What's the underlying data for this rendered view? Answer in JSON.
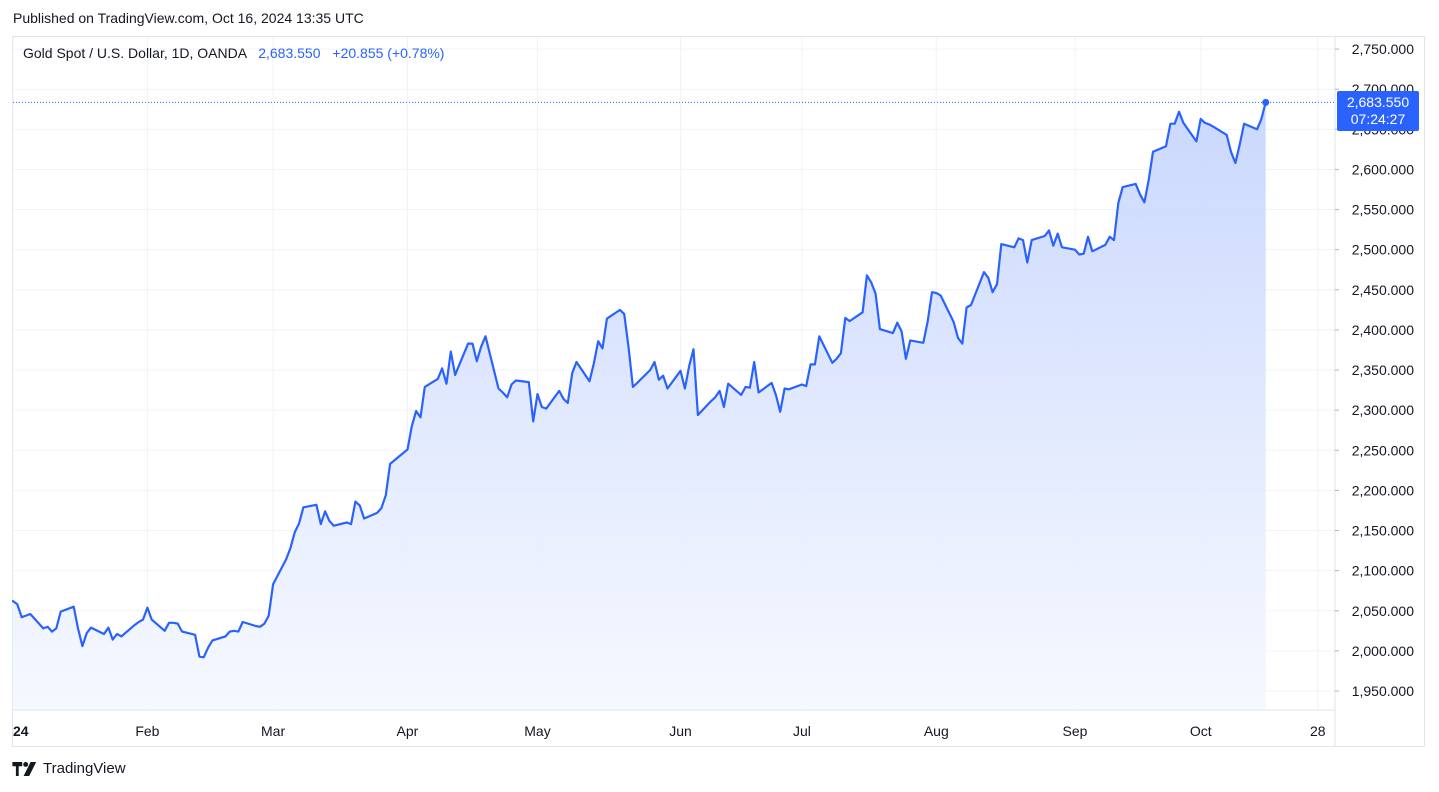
{
  "published": "Published on TradingView.com, Oct 16, 2024 13:35 UTC",
  "legend": {
    "symbol": "Gold Spot / U.S. Dollar, 1D, OANDA",
    "last": "2,683.550",
    "change": "+20.855 (+0.78%)"
  },
  "price_tag": {
    "price": "2,683.550",
    "countdown": "07:24:27"
  },
  "footer": {
    "brand": "TradingView"
  },
  "colors": {
    "line": "#2962ff",
    "fill_top": "#c7d6fd",
    "fill_bottom": "#f5f8ff",
    "grid": "#f0f3fa"
  },
  "chart_data": {
    "type": "area",
    "title": "Gold Spot / U.S. Dollar, 1D, OANDA",
    "xlabel": "",
    "ylabel": "",
    "ylim": [
      1930,
      2770
    ],
    "y_ticks": [
      1950,
      2000,
      2050,
      2100,
      2150,
      2200,
      2250,
      2300,
      2350,
      2400,
      2450,
      2500,
      2550,
      2600,
      2650,
      2700,
      2750
    ],
    "y_tick_labels": [
      "1,950.000",
      "2,000.000",
      "2,050.000",
      "2,100.000",
      "2,150.000",
      "2,200.000",
      "2,250.000",
      "2,300.000",
      "2,350.000",
      "2,400.000",
      "2,450.000",
      "2,500.000",
      "2,550.000",
      "2,600.000",
      "2,650.000",
      "2,700.000",
      "2,750.000"
    ],
    "x_tick_labels": [
      {
        "label": "24",
        "date": "2024-01-01"
      },
      {
        "label": "Feb",
        "date": "2024-02-01"
      },
      {
        "label": "Mar",
        "date": "2024-03-01"
      },
      {
        "label": "Apr",
        "date": "2024-04-01"
      },
      {
        "label": "May",
        "date": "2024-05-01"
      },
      {
        "label": "Jun",
        "date": "2024-06-03"
      },
      {
        "label": "Jul",
        "date": "2024-07-01"
      },
      {
        "label": "Aug",
        "date": "2024-08-01"
      },
      {
        "label": "Sep",
        "date": "2024-09-02"
      },
      {
        "label": "Oct",
        "date": "2024-10-01"
      },
      {
        "label": "28",
        "date": "2024-10-28"
      }
    ],
    "last_value": 2683.55,
    "grid": true,
    "series": [
      {
        "values": [
          [
            "2024-01-01",
            2062
          ],
          [
            "2024-01-02",
            2058
          ],
          [
            "2024-01-03",
            2042
          ],
          [
            "2024-01-04",
            2044
          ],
          [
            "2024-01-05",
            2046
          ],
          [
            "2024-01-08",
            2028
          ],
          [
            "2024-01-09",
            2030
          ],
          [
            "2024-01-10",
            2024
          ],
          [
            "2024-01-11",
            2028
          ],
          [
            "2024-01-12",
            2049
          ],
          [
            "2024-01-15",
            2055
          ],
          [
            "2024-01-16",
            2028
          ],
          [
            "2024-01-17",
            2006
          ],
          [
            "2024-01-18",
            2022
          ],
          [
            "2024-01-19",
            2029
          ],
          [
            "2024-01-22",
            2021
          ],
          [
            "2024-01-23",
            2029
          ],
          [
            "2024-01-24",
            2014
          ],
          [
            "2024-01-25",
            2021
          ],
          [
            "2024-01-26",
            2018
          ],
          [
            "2024-01-29",
            2032
          ],
          [
            "2024-01-30",
            2036
          ],
          [
            "2024-01-31",
            2039
          ],
          [
            "2024-02-01",
            2054
          ],
          [
            "2024-02-02",
            2039
          ],
          [
            "2024-02-05",
            2025
          ],
          [
            "2024-02-06",
            2035
          ],
          [
            "2024-02-07",
            2035
          ],
          [
            "2024-02-08",
            2034
          ],
          [
            "2024-02-09",
            2024
          ],
          [
            "2024-02-12",
            2020
          ],
          [
            "2024-02-13",
            1993
          ],
          [
            "2024-02-14",
            1992
          ],
          [
            "2024-02-15",
            2004
          ],
          [
            "2024-02-16",
            2013
          ],
          [
            "2024-02-19",
            2018
          ],
          [
            "2024-02-20",
            2024
          ],
          [
            "2024-02-21",
            2025
          ],
          [
            "2024-02-22",
            2024
          ],
          [
            "2024-02-23",
            2036
          ],
          [
            "2024-02-26",
            2031
          ],
          [
            "2024-02-27",
            2030
          ],
          [
            "2024-02-28",
            2034
          ],
          [
            "2024-02-29",
            2044
          ],
          [
            "2024-03-01",
            2083
          ],
          [
            "2024-03-04",
            2114
          ],
          [
            "2024-03-05",
            2128
          ],
          [
            "2024-03-06",
            2148
          ],
          [
            "2024-03-07",
            2159
          ],
          [
            "2024-03-08",
            2179
          ],
          [
            "2024-03-11",
            2182
          ],
          [
            "2024-03-12",
            2158
          ],
          [
            "2024-03-13",
            2174
          ],
          [
            "2024-03-14",
            2162
          ],
          [
            "2024-03-15",
            2156
          ],
          [
            "2024-03-18",
            2160
          ],
          [
            "2024-03-19",
            2158
          ],
          [
            "2024-03-20",
            2186
          ],
          [
            "2024-03-21",
            2181
          ],
          [
            "2024-03-22",
            2165
          ],
          [
            "2024-03-25",
            2172
          ],
          [
            "2024-03-26",
            2178
          ],
          [
            "2024-03-27",
            2194
          ],
          [
            "2024-03-28",
            2233
          ],
          [
            "2024-04-01",
            2251
          ],
          [
            "2024-04-02",
            2280
          ],
          [
            "2024-04-03",
            2299
          ],
          [
            "2024-04-04",
            2291
          ],
          [
            "2024-04-05",
            2329
          ],
          [
            "2024-04-08",
            2339
          ],
          [
            "2024-04-09",
            2352
          ],
          [
            "2024-04-10",
            2333
          ],
          [
            "2024-04-11",
            2373
          ],
          [
            "2024-04-12",
            2344
          ],
          [
            "2024-04-15",
            2383
          ],
          [
            "2024-04-16",
            2383
          ],
          [
            "2024-04-17",
            2361
          ],
          [
            "2024-04-18",
            2379
          ],
          [
            "2024-04-19",
            2392
          ],
          [
            "2024-04-22",
            2327
          ],
          [
            "2024-04-23",
            2322
          ],
          [
            "2024-04-24",
            2316
          ],
          [
            "2024-04-25",
            2332
          ],
          [
            "2024-04-26",
            2337
          ],
          [
            "2024-04-29",
            2335
          ],
          [
            "2024-04-30",
            2286
          ],
          [
            "2024-05-01",
            2320
          ],
          [
            "2024-05-02",
            2304
          ],
          [
            "2024-05-03",
            2302
          ],
          [
            "2024-05-06",
            2324
          ],
          [
            "2024-05-07",
            2314
          ],
          [
            "2024-05-08",
            2309
          ],
          [
            "2024-05-09",
            2346
          ],
          [
            "2024-05-10",
            2360
          ],
          [
            "2024-05-13",
            2336
          ],
          [
            "2024-05-14",
            2358
          ],
          [
            "2024-05-15",
            2386
          ],
          [
            "2024-05-16",
            2377
          ],
          [
            "2024-05-17",
            2414
          ],
          [
            "2024-05-20",
            2425
          ],
          [
            "2024-05-21",
            2420
          ],
          [
            "2024-05-22",
            2379
          ],
          [
            "2024-05-23",
            2329
          ],
          [
            "2024-05-24",
            2334
          ],
          [
            "2024-05-27",
            2350
          ],
          [
            "2024-05-28",
            2360
          ],
          [
            "2024-05-29",
            2338
          ],
          [
            "2024-05-30",
            2343
          ],
          [
            "2024-05-31",
            2327
          ],
          [
            "2024-06-03",
            2349
          ],
          [
            "2024-06-04",
            2327
          ],
          [
            "2024-06-05",
            2355
          ],
          [
            "2024-06-06",
            2376
          ],
          [
            "2024-06-07",
            2294
          ],
          [
            "2024-06-10",
            2311
          ],
          [
            "2024-06-11",
            2316
          ],
          [
            "2024-06-12",
            2324
          ],
          [
            "2024-06-13",
            2304
          ],
          [
            "2024-06-14",
            2333
          ],
          [
            "2024-06-17",
            2319
          ],
          [
            "2024-06-18",
            2329
          ],
          [
            "2024-06-19",
            2328
          ],
          [
            "2024-06-20",
            2360
          ],
          [
            "2024-06-21",
            2322
          ],
          [
            "2024-06-24",
            2334
          ],
          [
            "2024-06-25",
            2319
          ],
          [
            "2024-06-26",
            2298
          ],
          [
            "2024-06-27",
            2327
          ],
          [
            "2024-06-28",
            2326
          ],
          [
            "2024-07-01",
            2332
          ],
          [
            "2024-07-02",
            2330
          ],
          [
            "2024-07-03",
            2357
          ],
          [
            "2024-07-04",
            2357
          ],
          [
            "2024-07-05",
            2392
          ],
          [
            "2024-07-08",
            2359
          ],
          [
            "2024-07-09",
            2364
          ],
          [
            "2024-07-10",
            2371
          ],
          [
            "2024-07-11",
            2415
          ],
          [
            "2024-07-12",
            2411
          ],
          [
            "2024-07-15",
            2422
          ],
          [
            "2024-07-16",
            2468
          ],
          [
            "2024-07-17",
            2459
          ],
          [
            "2024-07-18",
            2445
          ],
          [
            "2024-07-19",
            2401
          ],
          [
            "2024-07-22",
            2396
          ],
          [
            "2024-07-23",
            2409
          ],
          [
            "2024-07-24",
            2398
          ],
          [
            "2024-07-25",
            2364
          ],
          [
            "2024-07-26",
            2387
          ],
          [
            "2024-07-29",
            2384
          ],
          [
            "2024-07-30",
            2410
          ],
          [
            "2024-07-31",
            2447
          ],
          [
            "2024-08-01",
            2446
          ],
          [
            "2024-08-02",
            2443
          ],
          [
            "2024-08-05",
            2410
          ],
          [
            "2024-08-06",
            2390
          ],
          [
            "2024-08-07",
            2383
          ],
          [
            "2024-08-08",
            2428
          ],
          [
            "2024-08-09",
            2431
          ],
          [
            "2024-08-12",
            2472
          ],
          [
            "2024-08-13",
            2465
          ],
          [
            "2024-08-14",
            2447
          ],
          [
            "2024-08-15",
            2457
          ],
          [
            "2024-08-16",
            2507
          ],
          [
            "2024-08-19",
            2503
          ],
          [
            "2024-08-20",
            2514
          ],
          [
            "2024-08-21",
            2512
          ],
          [
            "2024-08-22",
            2484
          ],
          [
            "2024-08-23",
            2512
          ],
          [
            "2024-08-26",
            2517
          ],
          [
            "2024-08-27",
            2524
          ],
          [
            "2024-08-28",
            2505
          ],
          [
            "2024-08-29",
            2520
          ],
          [
            "2024-08-30",
            2503
          ],
          [
            "2024-09-02",
            2500
          ],
          [
            "2024-09-03",
            2494
          ],
          [
            "2024-09-04",
            2495
          ],
          [
            "2024-09-05",
            2516
          ],
          [
            "2024-09-06",
            2498
          ],
          [
            "2024-09-09",
            2506
          ],
          [
            "2024-09-10",
            2516
          ],
          [
            "2024-09-11",
            2512
          ],
          [
            "2024-09-12",
            2558
          ],
          [
            "2024-09-13",
            2578
          ],
          [
            "2024-09-16",
            2582
          ],
          [
            "2024-09-17",
            2569
          ],
          [
            "2024-09-18",
            2559
          ],
          [
            "2024-09-19",
            2587
          ],
          [
            "2024-09-20",
            2622
          ],
          [
            "2024-09-23",
            2629
          ],
          [
            "2024-09-24",
            2657
          ],
          [
            "2024-09-25",
            2657
          ],
          [
            "2024-09-26",
            2672
          ],
          [
            "2024-09-27",
            2658
          ],
          [
            "2024-09-30",
            2635
          ],
          [
            "2024-10-01",
            2663
          ],
          [
            "2024-10-02",
            2658
          ],
          [
            "2024-10-03",
            2656
          ],
          [
            "2024-10-04",
            2653
          ],
          [
            "2024-10-07",
            2643
          ],
          [
            "2024-10-08",
            2622
          ],
          [
            "2024-10-09",
            2608
          ],
          [
            "2024-10-10",
            2631
          ],
          [
            "2024-10-11",
            2657
          ],
          [
            "2024-10-14",
            2650
          ],
          [
            "2024-10-15",
            2663
          ],
          [
            "2024-10-16",
            2683.55
          ]
        ]
      }
    ]
  }
}
